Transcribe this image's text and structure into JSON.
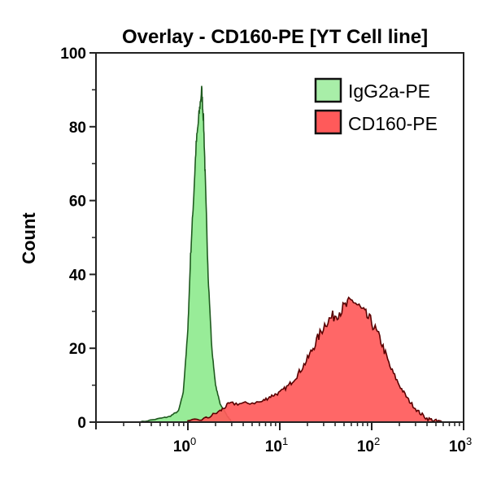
{
  "chart_data": {
    "type": "area",
    "title": "Overlay - CD160-PE [YT Cell line]",
    "xlabel": "",
    "ylabel": "Count",
    "xscale": "log",
    "xlim": [
      0.1,
      1000
    ],
    "ylim": [
      0,
      100
    ],
    "x_ticks": [
      {
        "value": 1,
        "base": "10",
        "exp": "0"
      },
      {
        "value": 10,
        "base": "10",
        "exp": "1"
      },
      {
        "value": 100,
        "base": "10",
        "exp": "2"
      },
      {
        "value": 1000,
        "base": "10",
        "exp": "3"
      }
    ],
    "y_ticks": [
      "0",
      "20",
      "40",
      "60",
      "80",
      "100"
    ],
    "grid": false,
    "legend_position": "top-right",
    "series": [
      {
        "name": "IgG2a-PE",
        "color": "#98ec98",
        "edge": "#1f5a1f",
        "x": [
          0.3,
          0.5,
          0.63,
          0.79,
          0.89,
          1.0,
          1.07,
          1.15,
          1.23,
          1.32,
          1.41,
          1.48,
          1.55,
          1.66,
          1.82,
          2.0,
          2.24,
          2.63,
          3.0
        ],
        "y": [
          0,
          1,
          1.5,
          3,
          8,
          25,
          45,
          60,
          75,
          83,
          90,
          82,
          65,
          40,
          20,
          10,
          5,
          2,
          0
        ]
      },
      {
        "name": "CD160-PE",
        "color": "#ff5a5a",
        "edge": "#5a0000",
        "x": [
          1.0,
          1.58,
          2.24,
          2.82,
          3.98,
          6.31,
          7.94,
          10,
          12.6,
          15.8,
          20,
          25.1,
          31.6,
          39.8,
          50.1,
          63.1,
          79.4,
          100,
          126,
          158,
          200,
          251,
          316,
          398,
          501,
          600
        ],
        "y": [
          0,
          1,
          3,
          5,
          5,
          5.5,
          7,
          8,
          10,
          13,
          17,
          22,
          27,
          29,
          31,
          33,
          30,
          27,
          22,
          15,
          10,
          6,
          3,
          1,
          0.3,
          0
        ]
      }
    ]
  }
}
